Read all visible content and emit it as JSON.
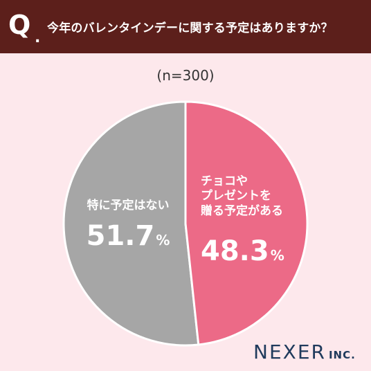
{
  "header": {
    "q_letter": "Q",
    "q_dot": ".",
    "question": "今年のバレンタインデーに関する予定はありますか？"
  },
  "chart_data": {
    "type": "pie",
    "sample_size": "(n=300)",
    "slices": [
      {
        "label": "特に予定はない",
        "value": 51.7,
        "value_text": "51.7",
        "color": "#a6a6a6"
      },
      {
        "label": "チョコや\nプレゼントを\n贈る予定がある",
        "value": 48.3,
        "value_text": "48.3",
        "color": "#ec6a87"
      }
    ],
    "unit": "%"
  },
  "brand": {
    "logo_main": "NEXER",
    "logo_suffix": "INC."
  },
  "colors": {
    "header_bg": "#5c1f1b",
    "background": "#fde8ec",
    "slice_gray": "#a6a6a6",
    "slice_pink": "#ec6a87",
    "logo": "#1f3a5c"
  }
}
